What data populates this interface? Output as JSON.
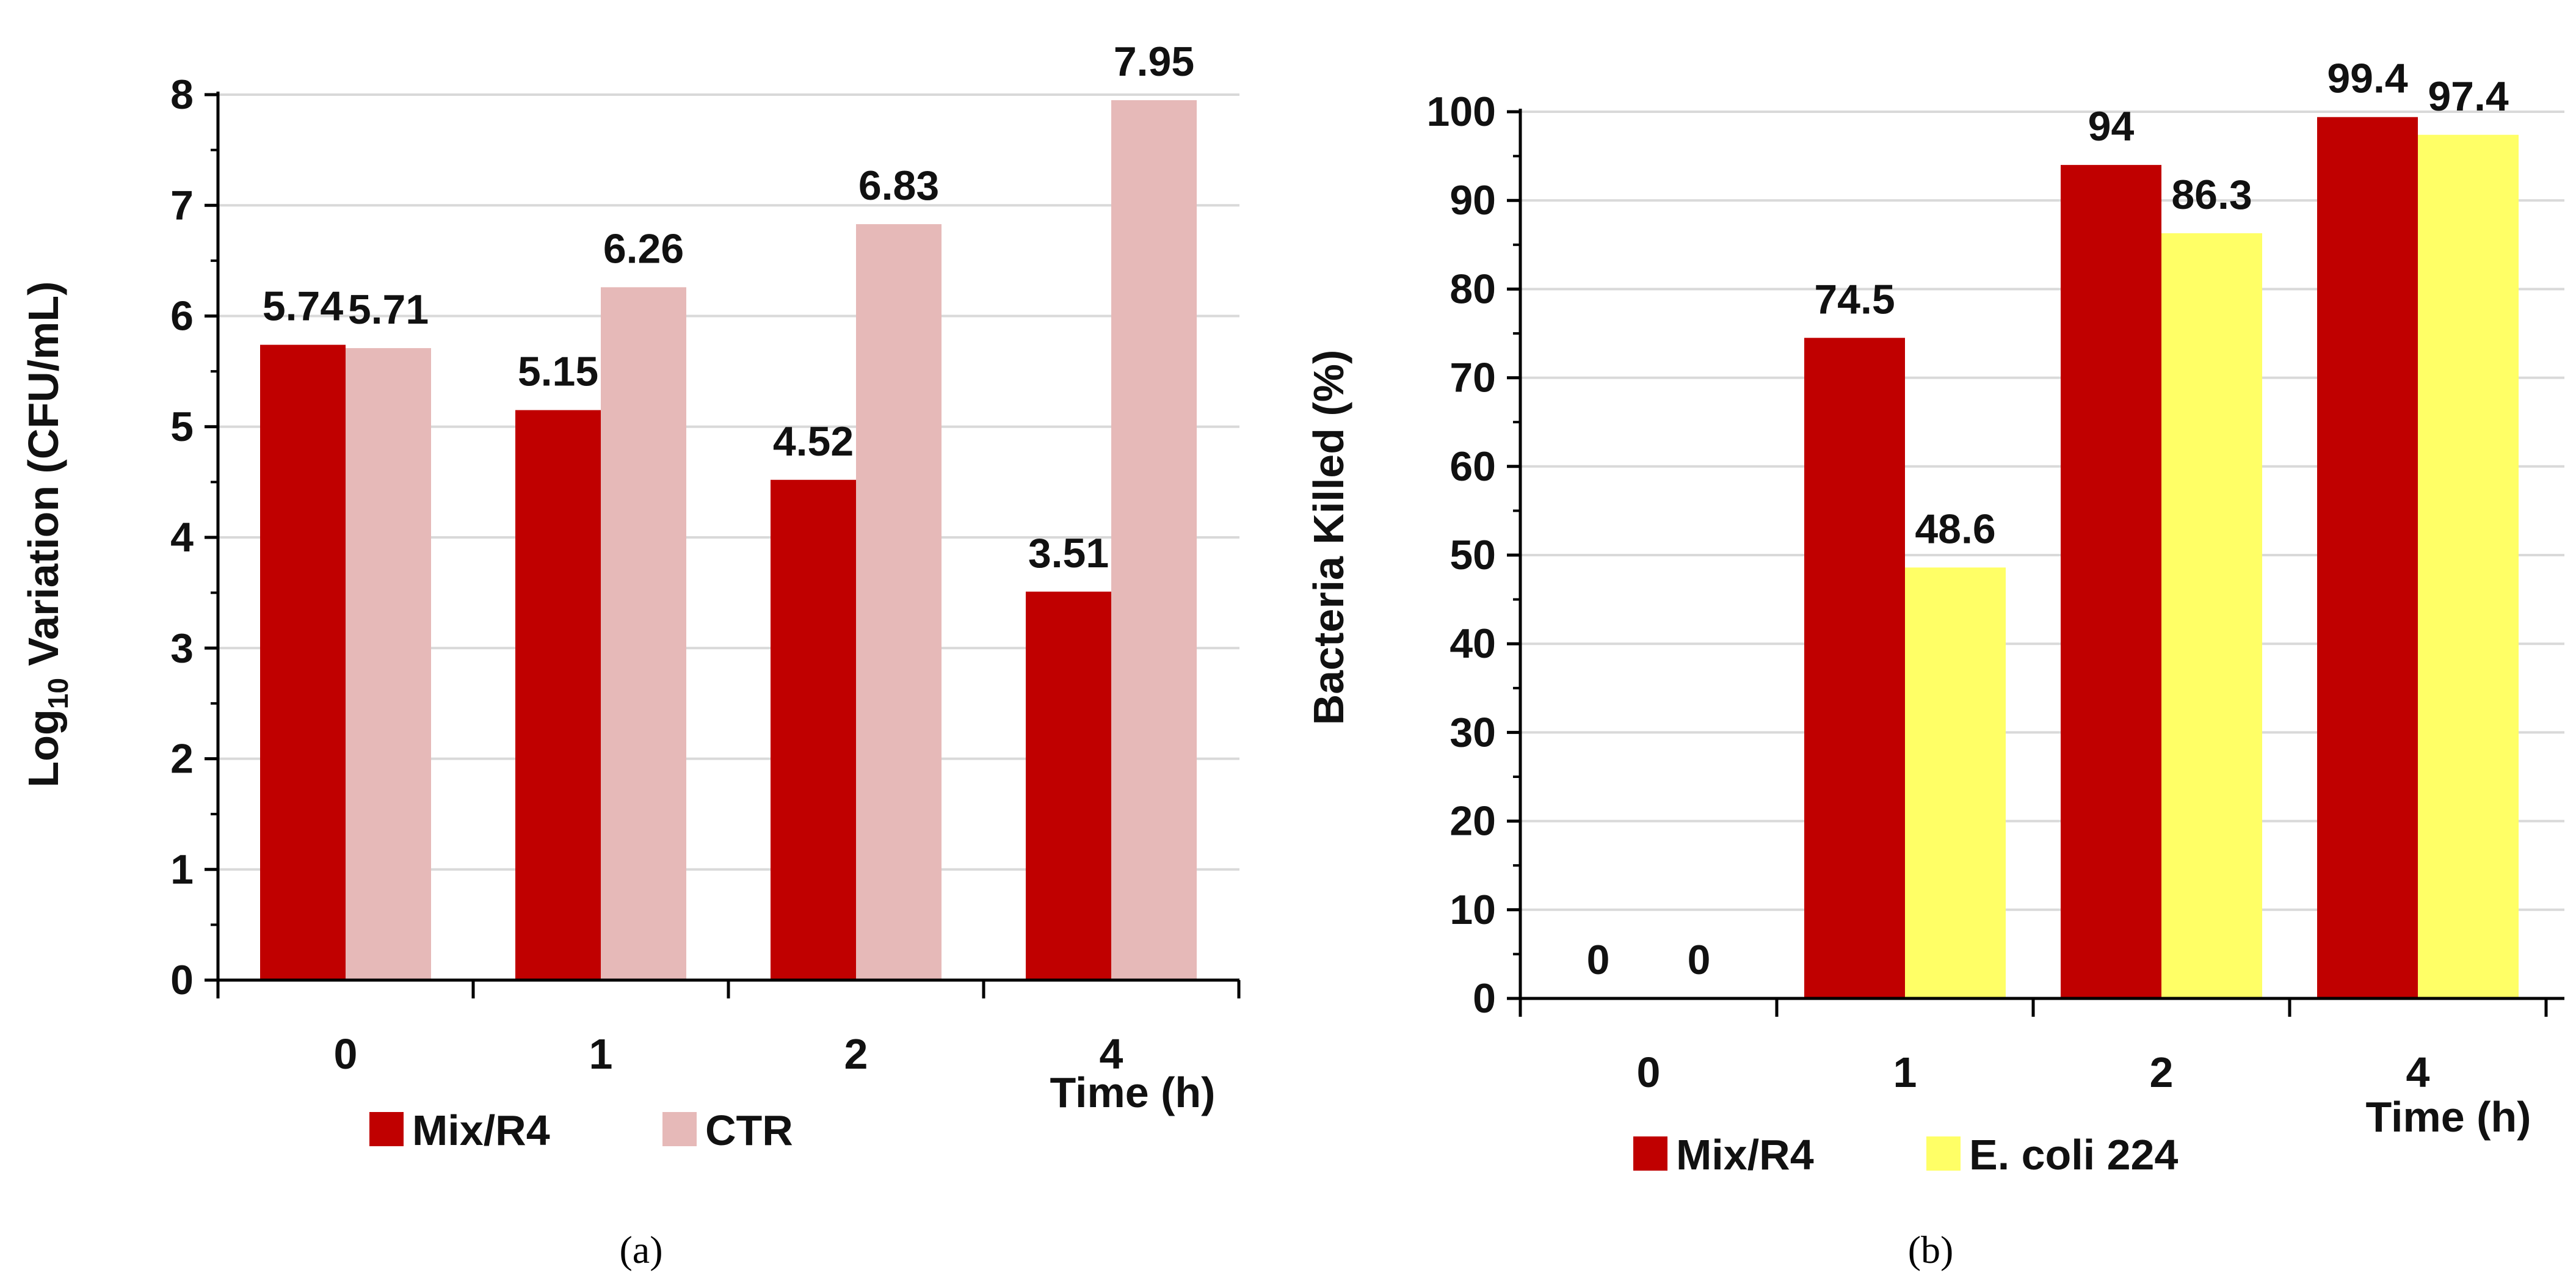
{
  "chart_data": [
    {
      "type": "bar",
      "panel_label": "(a)",
      "ylabel_prefix": "Log",
      "ylabel_sub": "10",
      "ylabel_suffix": " Variation (CFU/mL)",
      "xlabel": "Time (h)",
      "categories": [
        "0",
        "1",
        "2",
        "4"
      ],
      "ylim": [
        0,
        8
      ],
      "yticks": [
        "0",
        "1",
        "2",
        "3",
        "4",
        "5",
        "6",
        "7",
        "8"
      ],
      "grid": true,
      "legend_position": "bottom",
      "series": [
        {
          "name": "Mix/R4",
          "color": "#c00000",
          "values": [
            5.74,
            5.15,
            4.52,
            3.51
          ],
          "labels": [
            "5.74",
            "5.15",
            "4.52",
            "3.51"
          ]
        },
        {
          "name": "CTR",
          "color": "#e6b9b8",
          "values": [
            5.71,
            6.26,
            6.83,
            7.95
          ],
          "labels": [
            "5.71",
            "6.26",
            "6.83",
            "7.95"
          ]
        }
      ]
    },
    {
      "type": "bar",
      "panel_label": "(b)",
      "ylabel": "Bacteria Killed (%)",
      "xlabel": "Time (h)",
      "categories": [
        "0",
        "1",
        "2",
        "4"
      ],
      "ylim": [
        0,
        100
      ],
      "yticks": [
        "0",
        "10",
        "20",
        "30",
        "40",
        "50",
        "60",
        "70",
        "80",
        "90",
        "100"
      ],
      "grid": true,
      "legend_position": "bottom",
      "series": [
        {
          "name": "Mix/R4",
          "color": "#c00000",
          "values": [
            0,
            74.5,
            94,
            99.4
          ],
          "labels": [
            "0",
            "74.5",
            "94",
            "99.4"
          ]
        },
        {
          "name": "E. coli 224",
          "color": "#ffff66",
          "values": [
            0,
            48.6,
            86.3,
            97.4
          ],
          "labels": [
            "0",
            "48.6",
            "86.3",
            "97.4"
          ]
        }
      ]
    }
  ]
}
